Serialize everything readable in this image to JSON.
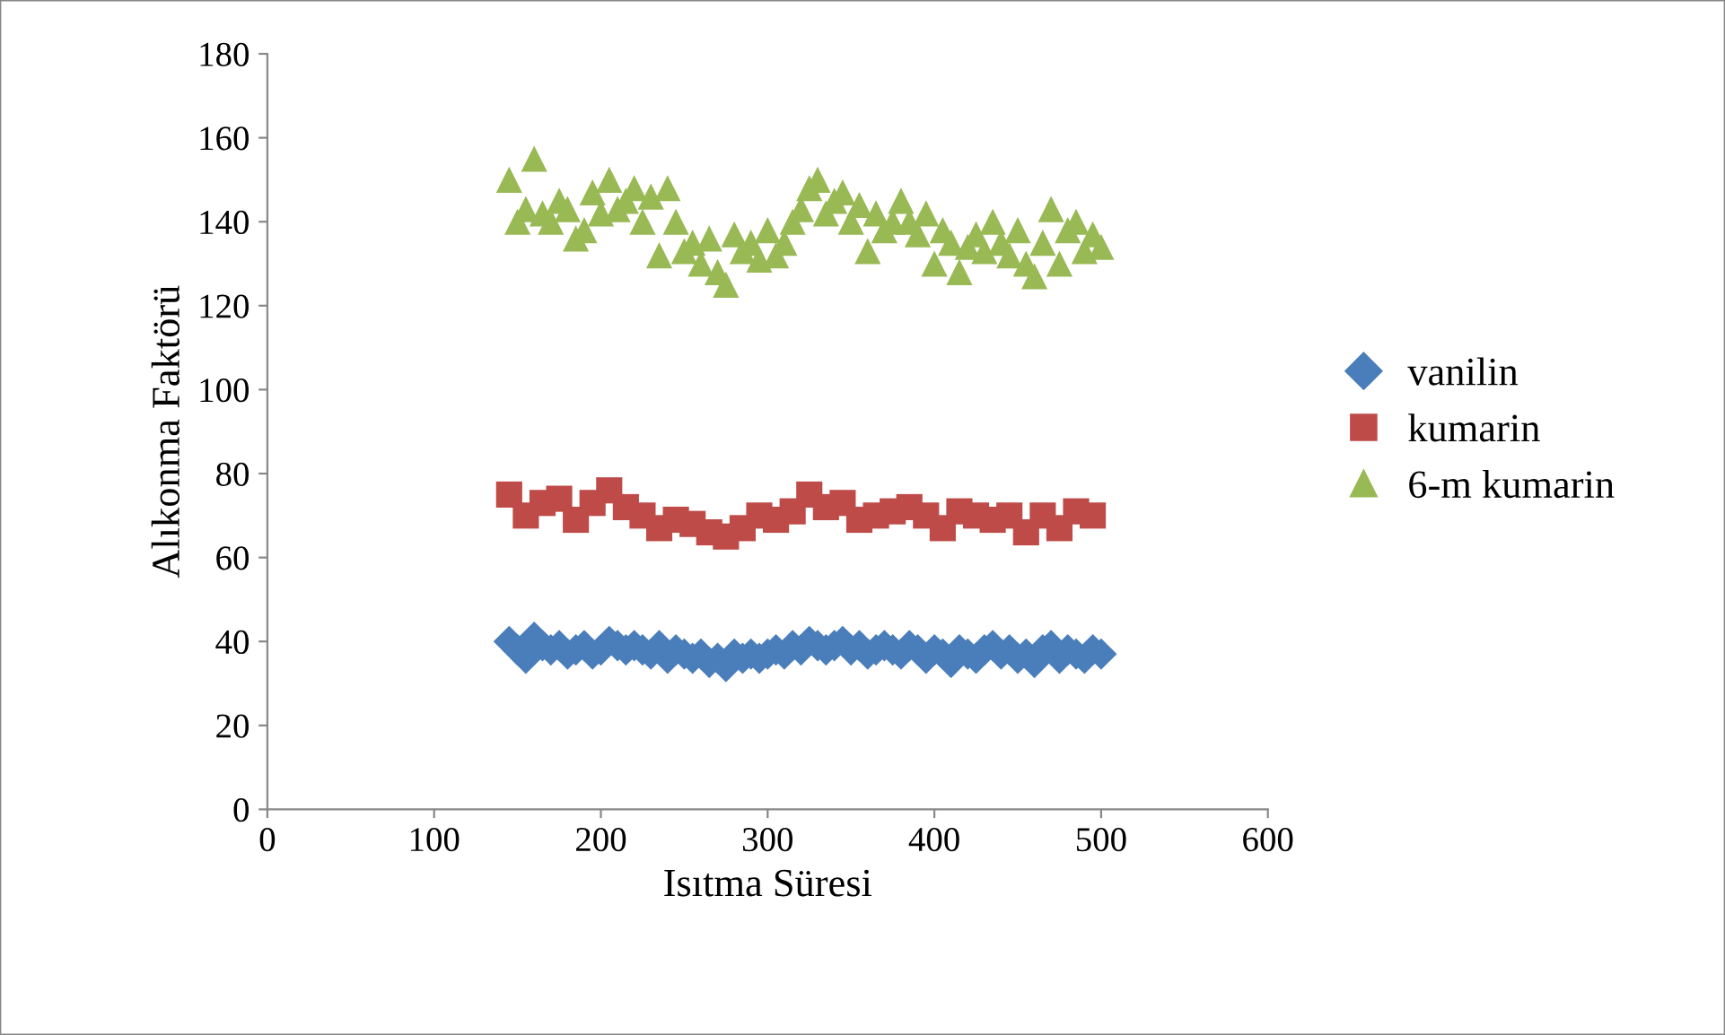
{
  "chart_data": {
    "type": "scatter",
    "xlabel": "Isıtma Süresi",
    "ylabel": "Alıkonma Faktörü",
    "x": [
      145,
      150,
      155,
      160,
      165,
      170,
      175,
      180,
      185,
      190,
      195,
      200,
      205,
      210,
      215,
      220,
      225,
      230,
      235,
      240,
      245,
      250,
      255,
      260,
      265,
      270,
      275,
      280,
      285,
      290,
      295,
      300,
      305,
      310,
      315,
      320,
      325,
      330,
      335,
      340,
      345,
      350,
      355,
      360,
      365,
      370,
      375,
      380,
      385,
      390,
      395,
      400,
      405,
      410,
      415,
      420,
      425,
      430,
      435,
      440,
      445,
      450,
      455,
      460,
      465,
      470,
      475,
      480,
      485,
      490,
      495,
      500
    ],
    "xlim": [
      0,
      600
    ],
    "xticks": [
      0,
      100,
      200,
      300,
      400,
      500,
      600
    ],
    "ylim": [
      0,
      180
    ],
    "yticks": [
      0,
      20,
      40,
      60,
      80,
      100,
      120,
      140,
      160,
      180
    ],
    "grid": false,
    "legend": "right",
    "series": [
      {
        "name": "vanilin",
        "color": "#4a7ebb",
        "marker": "diamond",
        "values": [
          40,
          38,
          36,
          41,
          39,
          38,
          39,
          37,
          38,
          39,
          37,
          38,
          40,
          39,
          38,
          39,
          38,
          37,
          39,
          36,
          38,
          37,
          36,
          37,
          35,
          36,
          34,
          37,
          36,
          37,
          36,
          37,
          38,
          37,
          39,
          38,
          40,
          39,
          38,
          39,
          40,
          38,
          39,
          37,
          38,
          39,
          38,
          37,
          39,
          38,
          36,
          38,
          37,
          35,
          38,
          37,
          36,
          38,
          39,
          37,
          38,
          36,
          37,
          35,
          38,
          39,
          36,
          38,
          37,
          36,
          38,
          37
        ]
      },
      {
        "name": "kumarin",
        "color": "#be4b48",
        "marker": "square",
        "x": [
          145,
          155,
          165,
          175,
          185,
          195,
          205,
          215,
          225,
          235,
          245,
          255,
          265,
          275,
          285,
          295,
          305,
          315,
          325,
          335,
          345,
          355,
          365,
          375,
          385,
          395,
          405,
          415,
          425,
          435,
          445,
          455,
          465,
          475,
          485,
          495
        ],
        "values": [
          75,
          70,
          73,
          74,
          69,
          73,
          76,
          72,
          70,
          67,
          69,
          68,
          66,
          65,
          67,
          70,
          69,
          71,
          75,
          72,
          73,
          69,
          70,
          71,
          72,
          70,
          67,
          71,
          70,
          69,
          70,
          66,
          70,
          67,
          71,
          70
        ]
      },
      {
        "name": "6-m kumarin",
        "color": "#98b954",
        "marker": "triangle",
        "values": [
          150,
          140,
          143,
          155,
          142,
          140,
          145,
          143,
          136,
          138,
          147,
          142,
          150,
          143,
          145,
          148,
          140,
          146,
          132,
          148,
          140,
          133,
          135,
          130,
          136,
          128,
          125,
          137,
          133,
          135,
          131,
          138,
          132,
          135,
          140,
          143,
          148,
          150,
          142,
          145,
          147,
          140,
          144,
          133,
          142,
          138,
          140,
          145,
          140,
          137,
          142,
          130,
          138,
          135,
          128,
          134,
          137,
          133,
          140,
          135,
          132,
          138,
          130,
          127,
          135,
          143,
          130,
          138,
          140,
          133,
          137,
          134
        ]
      }
    ]
  }
}
